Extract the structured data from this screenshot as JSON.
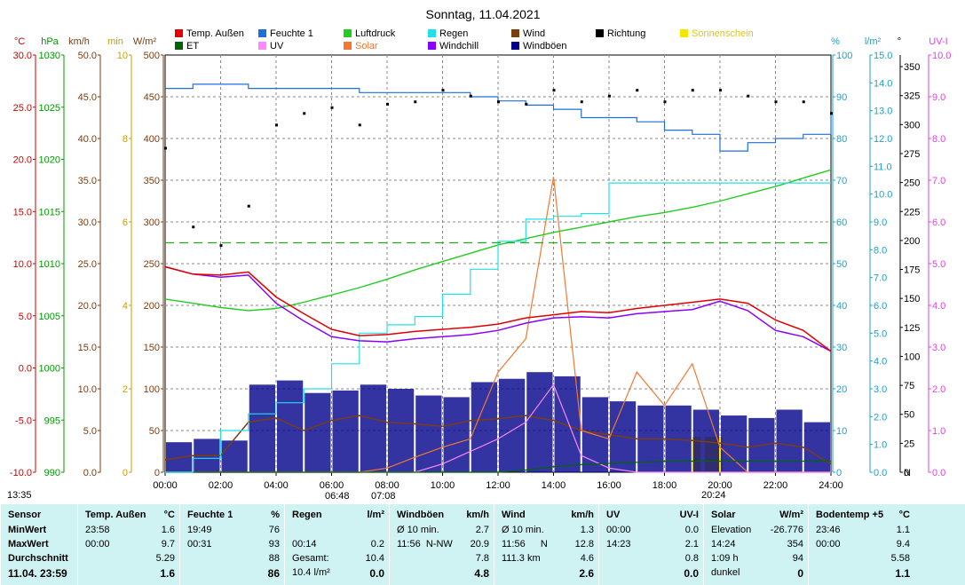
{
  "title": "Sonntag, 11.04.2021",
  "axes_units": {
    "temp": "°C",
    "pressure": "hPa",
    "wind": "km/h",
    "minutes": "min",
    "radiation": "W/m²",
    "humidity": "%",
    "rain": "l/m²",
    "direction": "°",
    "uv": "UV-I"
  },
  "axis_ticks": {
    "temp": [
      "30.0",
      "25.0",
      "20.0",
      "15.0",
      "10.0",
      "5.0",
      "0.0",
      "-5.0",
      "-10.0"
    ],
    "pressure": [
      "1030",
      "1025",
      "1020",
      "1015",
      "1010",
      "1005",
      "1000",
      "995",
      "990"
    ],
    "wind": [
      "50.0",
      "45.0",
      "40.0",
      "35.0",
      "30.0",
      "25.0",
      "20.0",
      "15.0",
      "10.0",
      "5.0",
      "0.0"
    ],
    "minutes": [
      "10",
      "8",
      "6",
      "4",
      "2",
      "0"
    ],
    "radiation": [
      "500",
      "450",
      "400",
      "350",
      "300",
      "250",
      "200",
      "150",
      "100",
      "50",
      "0"
    ],
    "humidity": [
      "100",
      "90",
      "80",
      "70",
      "60",
      "50",
      "40",
      "30",
      "20",
      "10",
      "0"
    ],
    "rain": [
      "15.0",
      "14.0",
      "13.0",
      "12.0",
      "11.0",
      "10.0",
      "9.0",
      "8.0",
      "7.0",
      "6.0",
      "5.0",
      "4.0",
      "3.0",
      "2.0",
      "1.0",
      "0.0"
    ],
    "direction": [
      "350",
      "325",
      "300",
      "275",
      "250",
      "225",
      "200",
      "175",
      "150",
      "125",
      "100",
      "75",
      "50",
      "25",
      "0",
      "N"
    ],
    "uv": [
      "10.0",
      "9.0",
      "8.0",
      "7.0",
      "6.0",
      "5.0",
      "4.0",
      "3.0",
      "2.0",
      "1.0",
      "0.0"
    ],
    "time": [
      "00:00",
      "02:00",
      "04:00",
      "06:00",
      "08:00",
      "10:00",
      "12:00",
      "14:00",
      "16:00",
      "18:00",
      "20:00",
      "22:00",
      "24:00"
    ]
  },
  "legend": [
    {
      "label": "Temp. Außen",
      "color": "#e00000"
    },
    {
      "label": "Feuchte 1",
      "color": "#1e6fd9"
    },
    {
      "label": "Luftdruck",
      "color": "#22cc22"
    },
    {
      "label": "Regen",
      "color": "#22e0e8"
    },
    {
      "label": "Wind",
      "color": "#7a3e12"
    },
    {
      "label": "Richtung",
      "color": "#000000"
    },
    {
      "label": "Sonnenschein",
      "color": "#f5e600"
    },
    {
      "label": "ET",
      "color": "#006600"
    },
    {
      "label": "UV",
      "color": "#ff88ff"
    },
    {
      "label": "Solar",
      "color": "#f07830"
    },
    {
      "label": "Windchill",
      "color": "#8a00ff"
    },
    {
      "label": "Windböen",
      "color": "#00008b"
    }
  ],
  "time_marks": {
    "left": "13:35",
    "sunrise": "06:48",
    "sunrise2": "07:08",
    "sunset": "20:24"
  },
  "chart_data": {
    "type": "line",
    "title": "Sonntag, 11.04.2021",
    "x_hours": [
      0,
      1,
      2,
      3,
      4,
      5,
      6,
      7,
      8,
      9,
      10,
      11,
      12,
      13,
      14,
      15,
      16,
      17,
      18,
      19,
      20,
      21,
      22,
      23,
      24
    ],
    "xlim": [
      0,
      24
    ],
    "grid": true,
    "legend_position": "top",
    "series": [
      {
        "name": "Temp. Außen",
        "axis": "°C",
        "color": "#e00000",
        "values": [
          9.7,
          9.0,
          8.9,
          9.2,
          6.8,
          5.2,
          3.7,
          3.1,
          3.2,
          3.5,
          3.7,
          3.9,
          4.2,
          4.8,
          5.1,
          5.4,
          5.3,
          5.7,
          6.0,
          6.3,
          6.6,
          6.2,
          4.6,
          3.6,
          1.6
        ]
      },
      {
        "name": "Windchill",
        "axis": "°C",
        "color": "#8a00ff",
        "values": [
          9.7,
          9.0,
          8.7,
          8.9,
          6.2,
          4.5,
          3.0,
          2.6,
          2.5,
          2.8,
          3.0,
          3.2,
          3.6,
          4.3,
          4.8,
          4.9,
          4.8,
          5.2,
          5.4,
          5.6,
          6.4,
          5.5,
          3.6,
          3.0,
          1.6
        ]
      },
      {
        "name": "Feuchte 1",
        "axis": "%",
        "color": "#1e6fd9",
        "values": [
          92,
          93,
          93,
          92,
          92,
          92,
          92,
          91,
          91,
          91,
          91,
          90,
          89,
          88,
          87,
          85,
          85,
          84,
          82,
          81,
          77,
          79,
          80,
          81,
          86
        ]
      },
      {
        "name": "Luftdruck",
        "axis": "hPa",
        "color": "#22cc22",
        "values": [
          1006.6,
          1006.2,
          1005.8,
          1005.5,
          1005.7,
          1006.3,
          1007.0,
          1007.7,
          1008.5,
          1009.4,
          1010.2,
          1011.0,
          1011.8,
          1012.4,
          1013.0,
          1013.5,
          1014.0,
          1014.5,
          1014.9,
          1015.4,
          1016.0,
          1016.7,
          1017.4,
          1018.2,
          1019.0
        ]
      },
      {
        "name": "Regen",
        "axis": "l/m²",
        "color": "#22e0e8",
        "values": [
          0.0,
          0.5,
          1.5,
          2.1,
          2.5,
          3.0,
          3.9,
          5.0,
          5.3,
          5.6,
          6.4,
          7.3,
          8.3,
          9.1,
          9.2,
          9.3,
          10.4,
          10.4,
          10.4,
          10.4,
          10.4,
          10.4,
          10.4,
          10.4,
          10.4
        ]
      },
      {
        "name": "Solar",
        "axis": "W/m²",
        "color": "#f07830",
        "values": [
          0,
          0,
          0,
          0,
          0,
          0,
          0,
          0,
          5,
          18,
          30,
          40,
          120,
          160,
          354,
          50,
          40,
          120,
          80,
          130,
          30,
          0,
          0,
          0,
          0
        ]
      },
      {
        "name": "Windböen",
        "axis": "km/h",
        "color": "#00008b",
        "values": [
          3.6,
          4.0,
          3.8,
          10.5,
          11.0,
          9.5,
          9.8,
          10.5,
          10.0,
          9.2,
          9.0,
          10.8,
          11.2,
          12.0,
          11.5,
          9.0,
          8.5,
          8.0,
          8.0,
          7.5,
          6.8,
          6.5,
          7.5,
          6.0,
          3.0
        ]
      },
      {
        "name": "Wind",
        "axis": "km/h",
        "color": "#7a3e12",
        "values": [
          1.5,
          2.0,
          2.0,
          6.0,
          6.5,
          5.0,
          6.2,
          6.8,
          6.0,
          5.8,
          5.5,
          6.2,
          6.4,
          6.8,
          6.2,
          5.0,
          4.5,
          4.0,
          4.0,
          3.8,
          3.5,
          3.0,
          3.5,
          3.0,
          1.0
        ]
      },
      {
        "name": "Richtung",
        "axis": "°",
        "color": "#000000",
        "values": [
          280,
          212,
          196,
          230,
          300,
          310,
          315,
          300,
          318,
          320,
          330,
          325,
          320,
          318,
          330,
          320,
          325,
          330,
          320,
          330,
          330,
          325,
          320,
          320,
          310
        ]
      },
      {
        "name": "UV",
        "axis": "UV-I",
        "color": "#ff88ff",
        "values": [
          0,
          0,
          0,
          0,
          0,
          0,
          0,
          0,
          0,
          0,
          0.2,
          0.5,
          0.8,
          1.2,
          2.1,
          0.4,
          0.1,
          0,
          0,
          0,
          0,
          0,
          0,
          0,
          0
        ]
      },
      {
        "name": "ET",
        "axis": "mm",
        "color": "#006600",
        "values": [
          0,
          0,
          0,
          0,
          0,
          0,
          0,
          0,
          0,
          0,
          0,
          0,
          0,
          0.02,
          0.05,
          0.07,
          0.08,
          0.09,
          0.1,
          0.1,
          0.1,
          0.1,
          0.1,
          0.1,
          0.1
        ]
      }
    ],
    "reference_lines": [
      {
        "label": "",
        "axis": "°C",
        "value": 12.0,
        "style": "dashed",
        "color": "#22aa22"
      }
    ],
    "sunshine_bars": {
      "name": "Sonnenschein",
      "color": "#f5e600",
      "spans_hours": [
        [
          19.0,
          19.3
        ],
        [
          19.45,
          20.1
        ]
      ]
    }
  },
  "summary": {
    "sensor": {
      "title": "Sensor",
      "labels": [
        "MinWert",
        "MaxWert",
        "Durchschnitt",
        "11.04. 23:59"
      ]
    },
    "temp": {
      "title": "Temp. Außen",
      "unit": "°C",
      "rows": [
        [
          "23:58",
          "",
          "1.6"
        ],
        [
          "00:00",
          "",
          "9.7"
        ],
        [
          "",
          "",
          "5.29"
        ],
        [
          "",
          "",
          "1.6"
        ]
      ]
    },
    "humidity": {
      "title": "Feuchte 1",
      "unit": "%",
      "rows": [
        [
          "19:49",
          "",
          "76"
        ],
        [
          "00:31",
          "",
          "93"
        ],
        [
          "",
          "",
          "88"
        ],
        [
          "",
          "",
          "86"
        ]
      ]
    },
    "rain": {
      "title": "Regen",
      "unit": "l/m²",
      "rows": [
        [
          "",
          "",
          ""
        ],
        [
          "00:14",
          "",
          "0.2"
        ],
        [
          "Gesamt:",
          "",
          "10.4"
        ],
        [
          "10.4 l/m²",
          "",
          "0.0"
        ]
      ]
    },
    "gusts": {
      "title": "Windböen",
      "unit": "km/h",
      "rows": [
        [
          "Ø 10 min.",
          "",
          "2.7"
        ],
        [
          "11:56",
          "N-NW",
          "20.9"
        ],
        [
          "",
          "",
          "7.8"
        ],
        [
          "",
          "",
          "4.8"
        ]
      ]
    },
    "wind": {
      "title": "Wind",
      "unit": "km/h",
      "rows": [
        [
          "Ø 10 min.",
          "",
          "1.3"
        ],
        [
          "11:56",
          "N",
          "12.8"
        ],
        [
          "111.3 km",
          "",
          "4.6"
        ],
        [
          "",
          "",
          "2.6"
        ]
      ]
    },
    "uv": {
      "title": "UV",
      "unit": "UV-I",
      "rows": [
        [
          "00:00",
          "",
          "0.0"
        ],
        [
          "14:23",
          "",
          "2.1"
        ],
        [
          "",
          "",
          "0.8"
        ],
        [
          "",
          "",
          "0.0"
        ]
      ]
    },
    "solar": {
      "title": "Solar",
      "unit": "W/m²",
      "rows": [
        [
          "Elevation",
          "",
          "-26.776"
        ],
        [
          "14:24",
          "",
          "354"
        ],
        [
          "1:09 h",
          "",
          "94"
        ],
        [
          "dunkel",
          "",
          "0"
        ]
      ]
    },
    "soil": {
      "title": "Bodentemp +5",
      "unit": "°C",
      "rows": [
        [
          "23:46",
          "",
          "1.1"
        ],
        [
          "00:00",
          "",
          "9.4"
        ],
        [
          "",
          "",
          "5.58"
        ],
        [
          "",
          "",
          "1.1"
        ]
      ]
    }
  }
}
